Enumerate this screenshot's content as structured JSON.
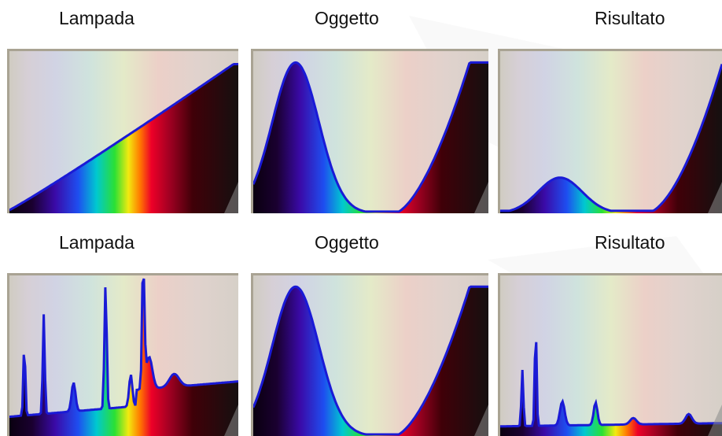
{
  "labels": {
    "lamp_top": "Lampada",
    "object_top": "Oggetto",
    "result_top": "Risultato",
    "lamp_bottom": "Lampada",
    "object_bottom": "Oggetto",
    "result_bottom": "Risultato"
  },
  "colors": {
    "curve_stroke": "#1a1ad6",
    "panel_bg": "#d0cdc4",
    "panel_border": "#a9a393"
  }
}
